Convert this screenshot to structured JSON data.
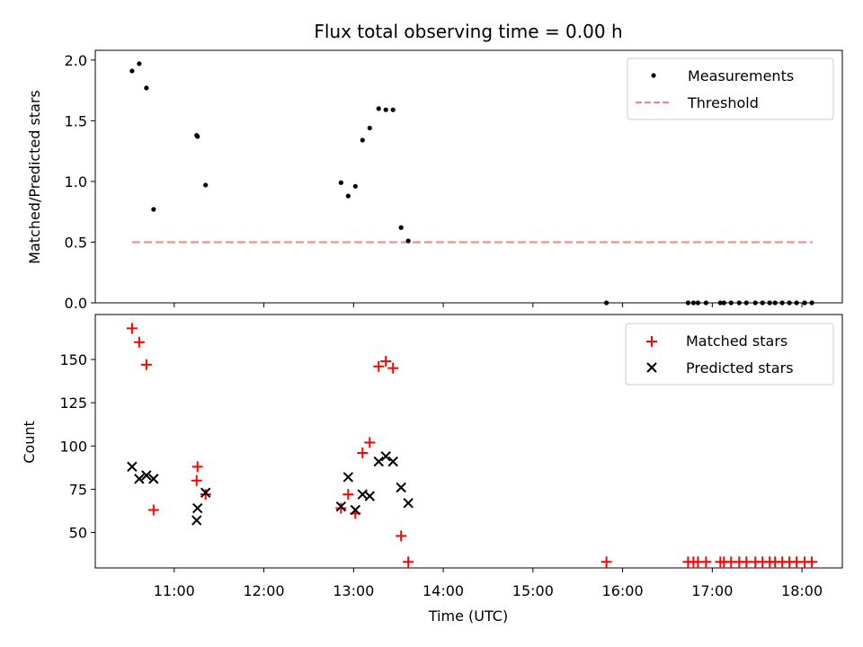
{
  "chart_data": {
    "type": "scatter",
    "title": "Flux total observing time = 0.00 h",
    "xlabel": "Time (UTC)",
    "x_tick_labels": [
      {
        "t": 11.0,
        "label": "11:00"
      },
      {
        "t": 12.0,
        "label": "12:00"
      },
      {
        "t": 13.0,
        "label": "13:00"
      },
      {
        "t": 14.0,
        "label": "14:00"
      },
      {
        "t": 15.0,
        "label": "15:00"
      },
      {
        "t": 16.0,
        "label": "16:00"
      },
      {
        "t": 17.0,
        "label": "17:00"
      },
      {
        "t": 18.0,
        "label": "18:00"
      }
    ],
    "xlim": [
      10.12,
      18.45
    ],
    "colors": {
      "matched": "#ff0000",
      "predicted": "#000000",
      "threshold": "#ff7f7f",
      "measure": "#000000"
    },
    "panels": [
      {
        "name": "ratio",
        "ylabel": "Matched/Predicted stars",
        "ylim": [
          0.0,
          2.08
        ],
        "y_ticks": [
          {
            "v": 0.0,
            "label": "0.0"
          },
          {
            "v": 0.5,
            "label": "0.5"
          },
          {
            "v": 1.0,
            "label": "1.0"
          },
          {
            "v": 1.5,
            "label": "1.5"
          },
          {
            "v": 2.0,
            "label": "2.0"
          }
        ],
        "legend": {
          "placement": "upper right",
          "items": [
            "Measurements",
            "Threshold"
          ]
        },
        "threshold": {
          "label": "Threshold",
          "y": 0.5,
          "x_start": 10.53,
          "x_end": 18.12
        },
        "series": [
          {
            "name": "Measurements",
            "marker": "dot",
            "points": [
              [
                10.53,
                1.91
              ],
              [
                10.61,
                1.97
              ],
              [
                10.69,
                1.77
              ],
              [
                10.77,
                0.77
              ],
              [
                11.25,
                1.38
              ],
              [
                11.26,
                1.37
              ],
              [
                11.35,
                0.97
              ],
              [
                12.86,
                0.99
              ],
              [
                12.94,
                0.88
              ],
              [
                13.02,
                0.96
              ],
              [
                13.1,
                1.34
              ],
              [
                13.18,
                1.44
              ],
              [
                13.28,
                1.6
              ],
              [
                13.36,
                1.59
              ],
              [
                13.44,
                1.59
              ],
              [
                13.53,
                0.62
              ],
              [
                13.61,
                0.51
              ],
              [
                15.82,
                0.0
              ],
              [
                16.73,
                0.0
              ],
              [
                16.79,
                0.0
              ],
              [
                16.84,
                0.0
              ],
              [
                16.93,
                0.0
              ],
              [
                17.09,
                0.0
              ],
              [
                17.13,
                0.0
              ],
              [
                17.21,
                0.0
              ],
              [
                17.3,
                0.0
              ],
              [
                17.38,
                0.0
              ],
              [
                17.48,
                0.0
              ],
              [
                17.56,
                0.0
              ],
              [
                17.64,
                0.0
              ],
              [
                17.7,
                0.0
              ],
              [
                17.78,
                0.0
              ],
              [
                17.86,
                0.0
              ],
              [
                17.94,
                0.0
              ],
              [
                18.03,
                0.0
              ],
              [
                18.11,
                0.0
              ]
            ]
          }
        ]
      },
      {
        "name": "count",
        "ylabel": "Count",
        "ylim": [
          29.5,
          176
        ],
        "y_ticks": [
          {
            "v": 50,
            "label": "50"
          },
          {
            "v": 75,
            "label": "75"
          },
          {
            "v": 100,
            "label": "100"
          },
          {
            "v": 125,
            "label": "125"
          },
          {
            "v": 150,
            "label": "150"
          }
        ],
        "legend": {
          "placement": "upper right",
          "items": [
            "Matched stars",
            "Predicted stars"
          ]
        },
        "series": [
          {
            "name": "Matched stars",
            "marker": "plus",
            "color": "#ff0000",
            "points": [
              [
                10.53,
                168
              ],
              [
                10.61,
                160
              ],
              [
                10.69,
                147
              ],
              [
                10.77,
                63
              ],
              [
                11.25,
                80
              ],
              [
                11.26,
                88
              ],
              [
                11.35,
                72
              ],
              [
                12.86,
                64
              ],
              [
                12.94,
                72
              ],
              [
                13.02,
                61
              ],
              [
                13.1,
                96
              ],
              [
                13.18,
                102
              ],
              [
                13.28,
                146
              ],
              [
                13.36,
                149
              ],
              [
                13.44,
                145
              ],
              [
                13.53,
                48
              ],
              [
                13.61,
                33
              ],
              [
                15.82,
                33
              ],
              [
                16.73,
                33
              ],
              [
                16.79,
                33
              ],
              [
                16.84,
                33
              ],
              [
                16.93,
                33
              ],
              [
                17.09,
                33
              ],
              [
                17.13,
                33
              ],
              [
                17.21,
                33
              ],
              [
                17.3,
                33
              ],
              [
                17.38,
                33
              ],
              [
                17.48,
                33
              ],
              [
                17.56,
                33
              ],
              [
                17.64,
                33
              ],
              [
                17.7,
                33
              ],
              [
                17.78,
                33
              ],
              [
                17.86,
                33
              ],
              [
                17.94,
                33
              ],
              [
                18.03,
                33
              ],
              [
                18.11,
                33
              ]
            ]
          },
          {
            "name": "Predicted stars",
            "marker": "x",
            "color": "#000000",
            "points": [
              [
                10.53,
                88
              ],
              [
                10.61,
                81
              ],
              [
                10.69,
                83
              ],
              [
                10.77,
                81
              ],
              [
                11.25,
                57
              ],
              [
                11.26,
                64
              ],
              [
                11.35,
                73
              ],
              [
                12.86,
                65
              ],
              [
                12.94,
                82
              ],
              [
                13.02,
                63
              ],
              [
                13.1,
                72
              ],
              [
                13.18,
                71
              ],
              [
                13.28,
                91
              ],
              [
                13.36,
                94
              ],
              [
                13.44,
                91
              ],
              [
                13.53,
                76
              ],
              [
                13.61,
                67
              ]
            ]
          }
        ]
      }
    ]
  }
}
